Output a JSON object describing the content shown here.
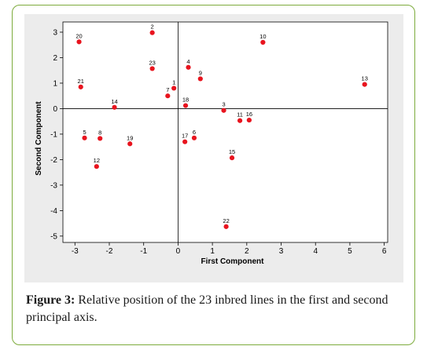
{
  "chart_data": {
    "type": "scatter",
    "xlabel": "First Component",
    "ylabel": "Second Component",
    "xlim": [
      -3.35,
      6.1
    ],
    "ylim": [
      -5.25,
      3.4
    ],
    "xticks": [
      -3,
      -2,
      -1,
      0,
      1,
      2,
      3,
      4,
      5,
      6
    ],
    "yticks": [
      -5,
      -4,
      -3,
      -2,
      -1,
      0,
      1,
      2,
      3
    ],
    "reference_lines": {
      "x": 0,
      "y": 0
    },
    "grid": false,
    "legend": "none",
    "marker_color": "#e8141e",
    "points": [
      {
        "label": "1",
        "x": -0.12,
        "y": 0.8
      },
      {
        "label": "2",
        "x": -0.75,
        "y": 2.98
      },
      {
        "label": "3",
        "x": 1.33,
        "y": -0.07
      },
      {
        "label": "4",
        "x": 0.3,
        "y": 1.62
      },
      {
        "label": "5",
        "x": -2.72,
        "y": -1.15
      },
      {
        "label": "6",
        "x": 0.47,
        "y": -1.15
      },
      {
        "label": "7",
        "x": -0.3,
        "y": 0.5
      },
      {
        "label": "8",
        "x": -2.27,
        "y": -1.17
      },
      {
        "label": "9",
        "x": 0.65,
        "y": 1.17
      },
      {
        "label": "10",
        "x": 2.47,
        "y": 2.6
      },
      {
        "label": "11",
        "x": 1.8,
        "y": -0.47
      },
      {
        "label": "12",
        "x": -2.37,
        "y": -2.27
      },
      {
        "label": "13",
        "x": 5.43,
        "y": 0.95
      },
      {
        "label": "14",
        "x": -1.85,
        "y": 0.05
      },
      {
        "label": "15",
        "x": 1.57,
        "y": -1.93
      },
      {
        "label": "16",
        "x": 2.07,
        "y": -0.45
      },
      {
        "label": "17",
        "x": 0.2,
        "y": -1.3
      },
      {
        "label": "18",
        "x": 0.22,
        "y": 0.12
      },
      {
        "label": "19",
        "x": -1.4,
        "y": -1.38
      },
      {
        "label": "20",
        "x": -2.88,
        "y": 2.62
      },
      {
        "label": "21",
        "x": -2.83,
        "y": 0.85
      },
      {
        "label": "22",
        "x": 1.4,
        "y": -4.63
      },
      {
        "label": "23",
        "x": -0.75,
        "y": 1.57
      }
    ]
  },
  "caption": {
    "label": "Figure 3:",
    "text": " Relative position of the 23 inbred lines in the first and second principal axis."
  }
}
